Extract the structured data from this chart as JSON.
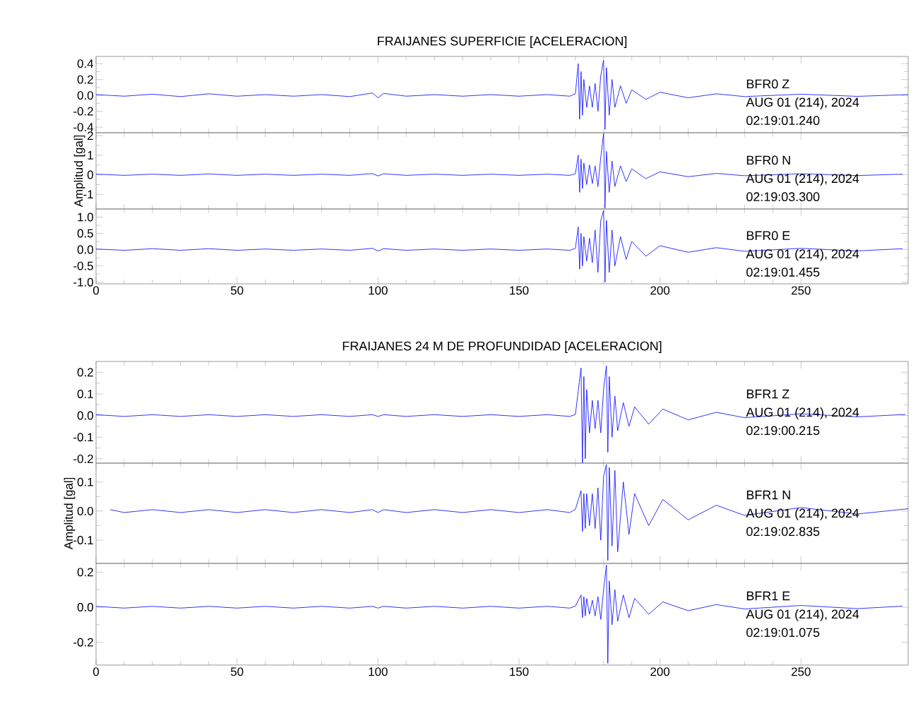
{
  "chart_data": [
    {
      "type": "line",
      "title": "FRAIJANES SUPERFICIE [ACELERACION]",
      "color": "#0000ff",
      "xlim": [
        0,
        288
      ],
      "xticks": [
        0,
        50,
        100,
        150,
        200,
        250
      ],
      "ylim": [
        -0.47,
        0.49
      ],
      "yticks": [
        0.4,
        0.2,
        {
          "value": 0,
          "label": "0.0"
        },
        -0.2,
        -0.4
      ],
      "tick_labels": "y",
      "annotations": [
        "BFR0   Z",
        "AUG 01 (214), 2024",
        "02:19:01.240"
      ],
      "x": [
        0,
        10,
        20,
        30,
        40,
        50,
        60,
        70,
        80,
        90,
        98,
        100,
        102,
        110,
        120,
        130,
        140,
        150,
        160,
        168,
        170,
        171,
        171.5,
        172,
        172.5,
        173,
        174,
        175,
        176,
        177,
        178,
        179,
        180,
        180.5,
        181,
        182,
        183,
        184,
        186,
        188,
        190,
        195,
        200,
        210,
        220,
        230,
        250,
        270,
        288
      ],
      "values": [
        0.01,
        -0.01,
        0.015,
        -0.015,
        0.02,
        -0.01,
        0.01,
        -0.01,
        0.01,
        -0.015,
        0.03,
        -0.03,
        0.025,
        -0.01,
        0.01,
        -0.01,
        0.01,
        -0.01,
        0.01,
        -0.01,
        0.02,
        0.4,
        -0.3,
        0.3,
        -0.25,
        0.2,
        -0.15,
        0.12,
        -0.15,
        0.15,
        -0.2,
        0.25,
        0.44,
        -0.43,
        0.35,
        -0.25,
        0.2,
        -0.15,
        0.12,
        -0.1,
        0.07,
        -0.05,
        0.04,
        -0.03,
        0.02,
        -0.015,
        0.015,
        -0.012,
        0.01
      ]
    },
    {
      "type": "line",
      "ylabel": "Amplitud [gal]",
      "color": "#0000ff",
      "xlim": [
        0,
        288
      ],
      "xticks": [
        0,
        50,
        100,
        150,
        200,
        250
      ],
      "ylim": [
        -1.75,
        2.15
      ],
      "yticks": [
        2,
        1,
        0,
        -1
      ],
      "tick_labels": "y",
      "annotations": [
        "BFR0   N",
        "AUG 01 (214), 2024",
        "02:19:03.300"
      ],
      "x": [
        0,
        10,
        20,
        30,
        40,
        50,
        60,
        70,
        80,
        90,
        98,
        100,
        102,
        110,
        120,
        130,
        140,
        150,
        160,
        168,
        170,
        171,
        171.5,
        172,
        172.5,
        173,
        174,
        175,
        176,
        177,
        178,
        179,
        180,
        180.5,
        181,
        182,
        183,
        184,
        186,
        188,
        190,
        195,
        200,
        210,
        220,
        230,
        250,
        270,
        286
      ],
      "values": [
        0.03,
        -0.03,
        0.03,
        -0.03,
        0.04,
        -0.03,
        0.03,
        -0.03,
        0.03,
        -0.03,
        0.06,
        -0.06,
        0.05,
        -0.03,
        0.03,
        -0.03,
        0.03,
        -0.03,
        0.03,
        -0.03,
        0.05,
        1.0,
        -0.9,
        0.8,
        -0.7,
        0.6,
        -0.5,
        0.5,
        -0.45,
        0.45,
        -0.6,
        0.9,
        2.1,
        -1.7,
        1.2,
        -0.9,
        0.7,
        -0.6,
        0.45,
        -0.35,
        0.3,
        -0.2,
        0.15,
        -0.1,
        0.07,
        -0.05,
        0.05,
        -0.04,
        0.03
      ]
    },
    {
      "type": "line",
      "color": "#0000ff",
      "xlim": [
        0,
        288
      ],
      "xticks": [
        0,
        50,
        100,
        150,
        200,
        250
      ],
      "ylim": [
        -1.05,
        1.25
      ],
      "yticks": [
        {
          "value": 1,
          "label": "1.0"
        },
        0.5,
        {
          "value": 0,
          "label": "0.0"
        },
        -0.5,
        {
          "value": -1,
          "label": "-1.0"
        }
      ],
      "annotations": [
        "BFR0   E",
        "AUG 01 (214), 2024",
        "02:19:01.455"
      ],
      "x": [
        0,
        10,
        20,
        30,
        40,
        50,
        60,
        70,
        80,
        90,
        98,
        100,
        102,
        110,
        120,
        130,
        140,
        150,
        160,
        168,
        170,
        171,
        171.5,
        172,
        172.5,
        173,
        174,
        175,
        176,
        177,
        178,
        179,
        180,
        180.5,
        181,
        182,
        183,
        184,
        186,
        188,
        190,
        195,
        200,
        210,
        220,
        230,
        250,
        270,
        286
      ],
      "values": [
        0.02,
        -0.02,
        0.03,
        -0.02,
        0.03,
        -0.02,
        0.02,
        -0.02,
        0.02,
        -0.02,
        0.04,
        -0.04,
        0.03,
        -0.02,
        0.02,
        -0.02,
        0.02,
        -0.02,
        0.02,
        -0.02,
        0.04,
        0.7,
        -0.6,
        0.5,
        -0.5,
        0.4,
        -0.35,
        0.35,
        -0.4,
        0.6,
        -0.7,
        0.9,
        1.2,
        -1.0,
        0.9,
        -0.7,
        0.6,
        -0.5,
        0.4,
        -0.3,
        0.25,
        -0.2,
        0.12,
        -0.08,
        0.06,
        -0.05,
        0.04,
        -0.04,
        0.03
      ]
    },
    {
      "type": "line",
      "title": "FRAIJANES 24 M DE PROFUNDIDAD [ACELERACION]",
      "color": "#0000ff",
      "xlim": [
        0,
        288
      ],
      "xticks": [
        0,
        50,
        100,
        150,
        200,
        250
      ],
      "ylim": [
        -0.22,
        0.25
      ],
      "yticks": [
        0.2,
        0.1,
        {
          "value": 0,
          "label": "0.0"
        },
        -0.1,
        -0.2
      ],
      "tick_labels": "y",
      "annotations": [
        "BFR1   Z",
        "AUG 01 (214), 2024",
        "02:19:00.215"
      ],
      "x": [
        0,
        10,
        20,
        30,
        40,
        50,
        60,
        70,
        80,
        90,
        98,
        100,
        102,
        110,
        120,
        130,
        140,
        150,
        160,
        168,
        170,
        172,
        172.5,
        173,
        173.5,
        174,
        175,
        176,
        177,
        178,
        179,
        180,
        181,
        181.5,
        182,
        183,
        184,
        185,
        187,
        189,
        191,
        196,
        201,
        210,
        220,
        230,
        250,
        270,
        287
      ],
      "values": [
        0.004,
        -0.004,
        0.004,
        -0.004,
        0.004,
        -0.004,
        0.004,
        -0.004,
        0.004,
        -0.004,
        0.004,
        -0.004,
        0.004,
        -0.004,
        0.004,
        -0.004,
        0.004,
        -0.004,
        0.004,
        -0.004,
        0.005,
        0.22,
        -0.22,
        0.18,
        -0.2,
        0.12,
        -0.08,
        0.07,
        -0.06,
        0.07,
        -0.08,
        0.12,
        0.23,
        -0.17,
        0.18,
        -0.1,
        0.09,
        -0.07,
        0.06,
        -0.05,
        0.04,
        -0.04,
        0.03,
        -0.02,
        0.015,
        -0.01,
        0.008,
        -0.006,
        0.005
      ]
    },
    {
      "type": "line",
      "ylabel": "Amplitud [gal]",
      "color": "#0000ff",
      "xlim": [
        0,
        288
      ],
      "xticks": [
        0,
        50,
        100,
        150,
        200,
        250
      ],
      "ylim": [
        -0.18,
        0.165
      ],
      "yticks": [
        0.1,
        {
          "value": 0,
          "label": "0.0"
        },
        -0.1
      ],
      "tick_labels": "y",
      "annotations": [
        "BFR1   N",
        "AUG 01 (214), 2024",
        "02:19:02.835"
      ],
      "x": [
        5,
        10,
        20,
        30,
        40,
        50,
        60,
        70,
        80,
        90,
        98,
        100,
        102,
        110,
        120,
        130,
        140,
        150,
        160,
        168,
        170,
        172,
        172.5,
        173,
        173.5,
        174,
        175,
        176,
        177,
        178,
        179,
        180,
        181,
        181.5,
        182,
        183,
        184,
        185,
        187,
        189,
        191,
        196,
        201,
        210,
        220,
        230,
        250,
        270,
        288
      ],
      "values": [
        0.005,
        -0.005,
        0.005,
        -0.005,
        0.005,
        -0.005,
        0.005,
        -0.005,
        0.005,
        -0.005,
        0.005,
        -0.005,
        0.005,
        -0.005,
        0.005,
        -0.005,
        0.005,
        -0.005,
        0.005,
        -0.005,
        0.006,
        0.07,
        -0.07,
        0.06,
        -0.06,
        0.06,
        -0.05,
        0.06,
        -0.06,
        0.08,
        -0.1,
        0.12,
        0.16,
        -0.17,
        0.15,
        -0.12,
        0.14,
        -0.14,
        0.1,
        -0.08,
        0.06,
        -0.05,
        0.04,
        -0.03,
        0.02,
        -0.015,
        0.012,
        -0.01,
        0.008
      ]
    },
    {
      "type": "line",
      "color": "#0000ff",
      "xlim": [
        0,
        288
      ],
      "xticks": [
        0,
        50,
        100,
        150,
        200,
        250
      ],
      "ylim": [
        -0.33,
        0.25
      ],
      "yticks": [
        {
          "value": 0.2,
          "label": "0.2"
        },
        {
          "value": 0,
          "label": "0.0"
        },
        -0.2
      ],
      "annotations": [
        "BFR1   E",
        "AUG 01 (214), 2024",
        "02:19:01.075"
      ],
      "x": [
        0,
        10,
        20,
        30,
        40,
        50,
        60,
        70,
        80,
        90,
        98,
        100,
        102,
        110,
        120,
        130,
        140,
        150,
        160,
        168,
        170,
        172,
        172.5,
        173,
        173.5,
        174,
        175,
        176,
        177,
        178,
        179,
        180,
        181,
        181.5,
        182,
        183,
        184,
        185,
        187,
        189,
        191,
        196,
        201,
        210,
        220,
        230,
        250,
        270,
        286
      ],
      "values": [
        0.005,
        -0.005,
        0.005,
        -0.005,
        0.005,
        -0.005,
        0.005,
        -0.005,
        0.005,
        -0.005,
        0.005,
        -0.005,
        0.005,
        -0.005,
        0.005,
        -0.005,
        0.005,
        -0.005,
        0.005,
        -0.005,
        0.006,
        0.07,
        -0.06,
        0.06,
        -0.05,
        0.05,
        -0.04,
        0.04,
        -0.05,
        0.06,
        -0.07,
        0.1,
        0.24,
        -0.32,
        0.15,
        -0.1,
        0.1,
        -0.08,
        0.07,
        -0.06,
        0.05,
        -0.04,
        0.03,
        -0.02,
        0.015,
        -0.01,
        0.01,
        -0.008,
        0.006
      ]
    }
  ]
}
